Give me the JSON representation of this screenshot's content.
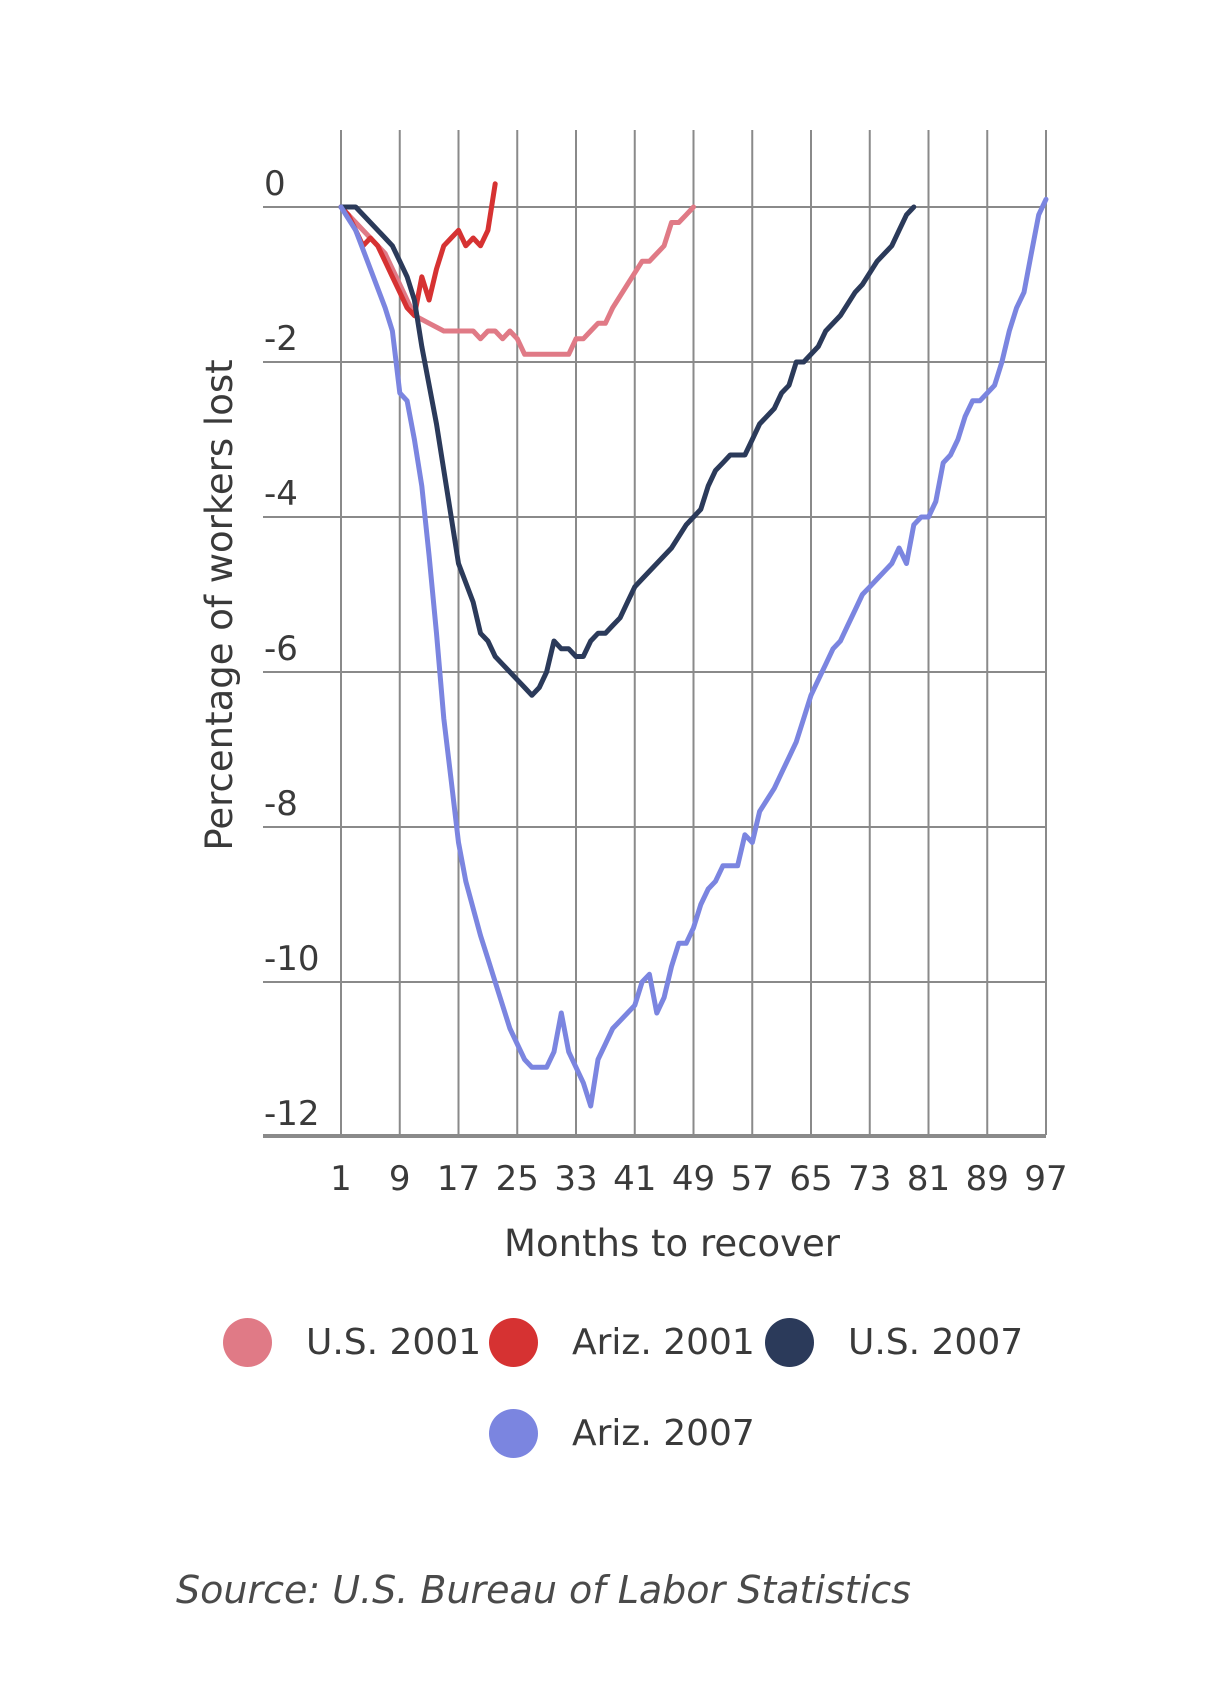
{
  "chart_data": {
    "type": "line",
    "title": "",
    "xlabel": "Months to recover",
    "ylabel": "Percentage of workers lost",
    "xlim": [
      1,
      97
    ],
    "ylim": [
      -12.5,
      1
    ],
    "x_ticks": [
      1,
      9,
      17,
      25,
      33,
      41,
      49,
      57,
      65,
      73,
      81,
      89,
      97
    ],
    "y_ticks": [
      0,
      -2,
      -4,
      -6,
      -8,
      -10,
      -12
    ],
    "grid": true,
    "legend_position": "bottom",
    "series": [
      {
        "name": "U.S. 2001",
        "color": "#e07a86",
        "points": [
          [
            1,
            0
          ],
          [
            3,
            -0.2
          ],
          [
            5,
            -0.4
          ],
          [
            7,
            -0.6
          ],
          [
            9,
            -1.0
          ],
          [
            11,
            -1.4
          ],
          [
            13,
            -1.5
          ],
          [
            15,
            -1.6
          ],
          [
            17,
            -1.6
          ],
          [
            19,
            -1.6
          ],
          [
            20,
            -1.7
          ],
          [
            21,
            -1.6
          ],
          [
            22,
            -1.6
          ],
          [
            23,
            -1.7
          ],
          [
            24,
            -1.6
          ],
          [
            25,
            -1.7
          ],
          [
            26,
            -1.9
          ],
          [
            29,
            -1.9
          ],
          [
            32,
            -1.9
          ],
          [
            33,
            -1.7
          ],
          [
            34,
            -1.7
          ],
          [
            35,
            -1.6
          ],
          [
            36,
            -1.5
          ],
          [
            37,
            -1.5
          ],
          [
            38,
            -1.3
          ],
          [
            40,
            -1.0
          ],
          [
            42,
            -0.7
          ],
          [
            43,
            -0.7
          ],
          [
            45,
            -0.5
          ],
          [
            46,
            -0.2
          ],
          [
            47,
            -0.2
          ],
          [
            48,
            -0.1
          ],
          [
            49,
            0
          ]
        ]
      },
      {
        "name": "Ariz. 2001",
        "color": "#d63232",
        "points": [
          [
            1,
            0
          ],
          [
            2,
            -0.1
          ],
          [
            3,
            -0.3
          ],
          [
            4,
            -0.5
          ],
          [
            5,
            -0.4
          ],
          [
            6,
            -0.5
          ],
          [
            7,
            -0.7
          ],
          [
            8,
            -0.9
          ],
          [
            9,
            -1.1
          ],
          [
            10,
            -1.3
          ],
          [
            11,
            -1.4
          ],
          [
            12,
            -0.9
          ],
          [
            13,
            -1.2
          ],
          [
            14,
            -0.8
          ],
          [
            15,
            -0.5
          ],
          [
            16,
            -0.4
          ],
          [
            17,
            -0.3
          ],
          [
            18,
            -0.5
          ],
          [
            19,
            -0.4
          ],
          [
            20,
            -0.5
          ],
          [
            21,
            -0.3
          ],
          [
            22,
            0.3
          ]
        ]
      },
      {
        "name": "U.S. 2007",
        "color": "#2b3a5a",
        "points": [
          [
            1,
            0
          ],
          [
            3,
            0
          ],
          [
            5,
            -0.2
          ],
          [
            7,
            -0.4
          ],
          [
            8,
            -0.5
          ],
          [
            9,
            -0.7
          ],
          [
            10,
            -0.9
          ],
          [
            11,
            -1.2
          ],
          [
            12,
            -1.8
          ],
          [
            14,
            -2.8
          ],
          [
            16,
            -4.0
          ],
          [
            17,
            -4.6
          ],
          [
            19,
            -5.1
          ],
          [
            20,
            -5.5
          ],
          [
            21,
            -5.6
          ],
          [
            22,
            -5.8
          ],
          [
            23,
            -5.9
          ],
          [
            24,
            -6.0
          ],
          [
            25,
            -6.1
          ],
          [
            26,
            -6.2
          ],
          [
            27,
            -6.3
          ],
          [
            28,
            -6.2
          ],
          [
            29,
            -6.0
          ],
          [
            30,
            -5.6
          ],
          [
            31,
            -5.7
          ],
          [
            32,
            -5.7
          ],
          [
            33,
            -5.8
          ],
          [
            34,
            -5.8
          ],
          [
            35,
            -5.6
          ],
          [
            36,
            -5.5
          ],
          [
            37,
            -5.5
          ],
          [
            38,
            -5.4
          ],
          [
            39,
            -5.3
          ],
          [
            40,
            -5.1
          ],
          [
            41,
            -4.9
          ],
          [
            42,
            -4.8
          ],
          [
            44,
            -4.6
          ],
          [
            46,
            -4.4
          ],
          [
            48,
            -4.1
          ],
          [
            50,
            -3.9
          ],
          [
            51,
            -3.6
          ],
          [
            52,
            -3.4
          ],
          [
            53,
            -3.3
          ],
          [
            54,
            -3.2
          ],
          [
            56,
            -3.2
          ],
          [
            57,
            -3.0
          ],
          [
            58,
            -2.8
          ],
          [
            60,
            -2.6
          ],
          [
            61,
            -2.4
          ],
          [
            62,
            -2.3
          ],
          [
            63,
            -2.0
          ],
          [
            64,
            -2.0
          ],
          [
            66,
            -1.8
          ],
          [
            67,
            -1.6
          ],
          [
            69,
            -1.4
          ],
          [
            71,
            -1.1
          ],
          [
            72,
            -1.0
          ],
          [
            74,
            -0.7
          ],
          [
            76,
            -0.5
          ],
          [
            77,
            -0.3
          ],
          [
            78,
            -0.1
          ],
          [
            79,
            0
          ]
        ]
      },
      {
        "name": "Ariz. 2007",
        "color": "#7b85e0",
        "points": [
          [
            1,
            0
          ],
          [
            3,
            -0.3
          ],
          [
            5,
            -0.8
          ],
          [
            7,
            -1.3
          ],
          [
            8,
            -1.6
          ],
          [
            9,
            -2.4
          ],
          [
            10,
            -2.5
          ],
          [
            11,
            -3.0
          ],
          [
            12,
            -3.6
          ],
          [
            13,
            -4.5
          ],
          [
            14,
            -5.5
          ],
          [
            15,
            -6.6
          ],
          [
            16,
            -7.4
          ],
          [
            17,
            -8.2
          ],
          [
            18,
            -8.7
          ],
          [
            20,
            -9.4
          ],
          [
            21,
            -9.7
          ],
          [
            22,
            -10.0
          ],
          [
            24,
            -10.6
          ],
          [
            26,
            -11.0
          ],
          [
            27,
            -11.1
          ],
          [
            29,
            -11.1
          ],
          [
            30,
            -10.9
          ],
          [
            31,
            -10.4
          ],
          [
            32,
            -10.9
          ],
          [
            33,
            -11.1
          ],
          [
            34,
            -11.3
          ],
          [
            35,
            -11.6
          ],
          [
            36,
            -11.0
          ],
          [
            37,
            -10.8
          ],
          [
            38,
            -10.6
          ],
          [
            39,
            -10.5
          ],
          [
            41,
            -10.3
          ],
          [
            42,
            -10.0
          ],
          [
            43,
            -9.9
          ],
          [
            44,
            -10.4
          ],
          [
            45,
            -10.2
          ],
          [
            46,
            -9.8
          ],
          [
            47,
            -9.5
          ],
          [
            48,
            -9.5
          ],
          [
            49,
            -9.3
          ],
          [
            50,
            -9.0
          ],
          [
            51,
            -8.8
          ],
          [
            52,
            -8.7
          ],
          [
            53,
            -8.5
          ],
          [
            55,
            -8.5
          ],
          [
            56,
            -8.1
          ],
          [
            57,
            -8.2
          ],
          [
            58,
            -7.8
          ],
          [
            60,
            -7.5
          ],
          [
            61,
            -7.3
          ],
          [
            62,
            -7.1
          ],
          [
            63,
            -6.9
          ],
          [
            64,
            -6.6
          ],
          [
            65,
            -6.3
          ],
          [
            66,
            -6.1
          ],
          [
            67,
            -5.9
          ],
          [
            68,
            -5.7
          ],
          [
            69,
            -5.6
          ],
          [
            70,
            -5.4
          ],
          [
            71,
            -5.2
          ],
          [
            72,
            -5.0
          ],
          [
            73,
            -4.9
          ],
          [
            74,
            -4.8
          ],
          [
            75,
            -4.7
          ],
          [
            76,
            -4.6
          ],
          [
            77,
            -4.4
          ],
          [
            78,
            -4.6
          ],
          [
            79,
            -4.1
          ],
          [
            80,
            -4.0
          ],
          [
            81,
            -4.0
          ],
          [
            82,
            -3.8
          ],
          [
            83,
            -3.3
          ],
          [
            84,
            -3.2
          ],
          [
            85,
            -3.0
          ],
          [
            86,
            -2.7
          ],
          [
            87,
            -2.5
          ],
          [
            88,
            -2.5
          ],
          [
            89,
            -2.4
          ],
          [
            90,
            -2.3
          ],
          [
            91,
            -2.0
          ],
          [
            92,
            -1.6
          ],
          [
            93,
            -1.3
          ],
          [
            94,
            -1.1
          ],
          [
            95,
            -0.6
          ],
          [
            96,
            -0.1
          ],
          [
            97,
            0.1
          ]
        ]
      }
    ],
    "source": "Source: U.S. Bureau of Labor Statistics"
  }
}
